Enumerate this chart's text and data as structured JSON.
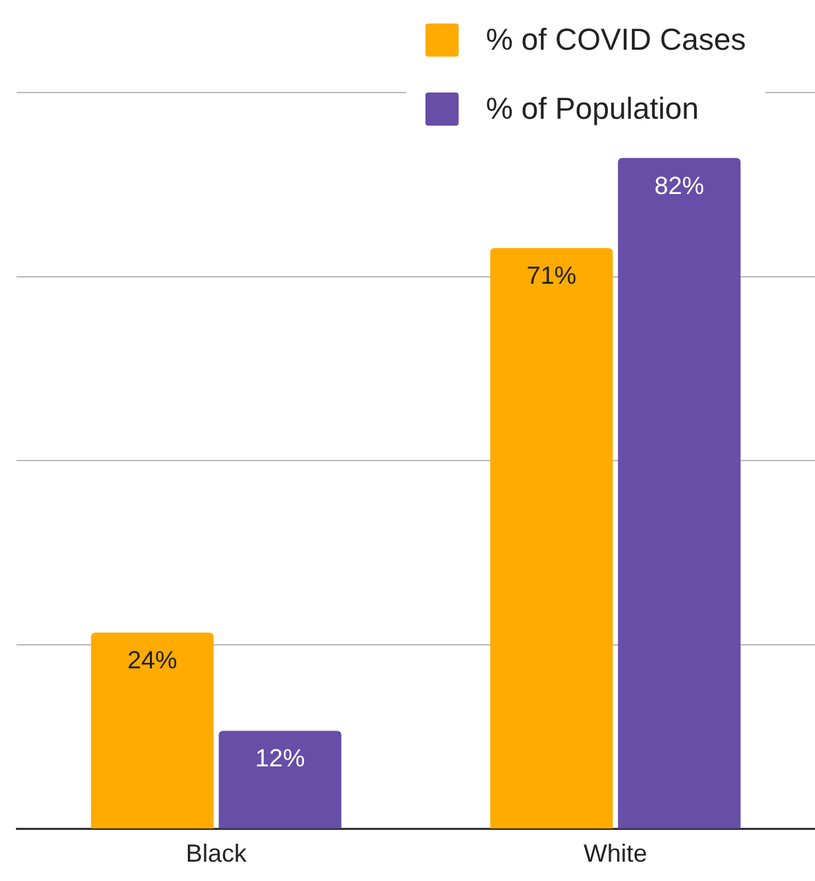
{
  "chart_data": {
    "type": "bar",
    "categories": [
      "Black",
      "White"
    ],
    "series": [
      {
        "name": "% of COVID Cases",
        "color": "#ffab00",
        "values": [
          24,
          71
        ],
        "value_labels": [
          "24%",
          "71%"
        ]
      },
      {
        "name": "% of Population",
        "color": "#674ea7",
        "values": [
          12,
          82
        ],
        "value_labels": [
          "12%",
          "82%"
        ]
      }
    ],
    "tick_labels": "x",
    "grid": "y",
    "legend": "top right"
  }
}
